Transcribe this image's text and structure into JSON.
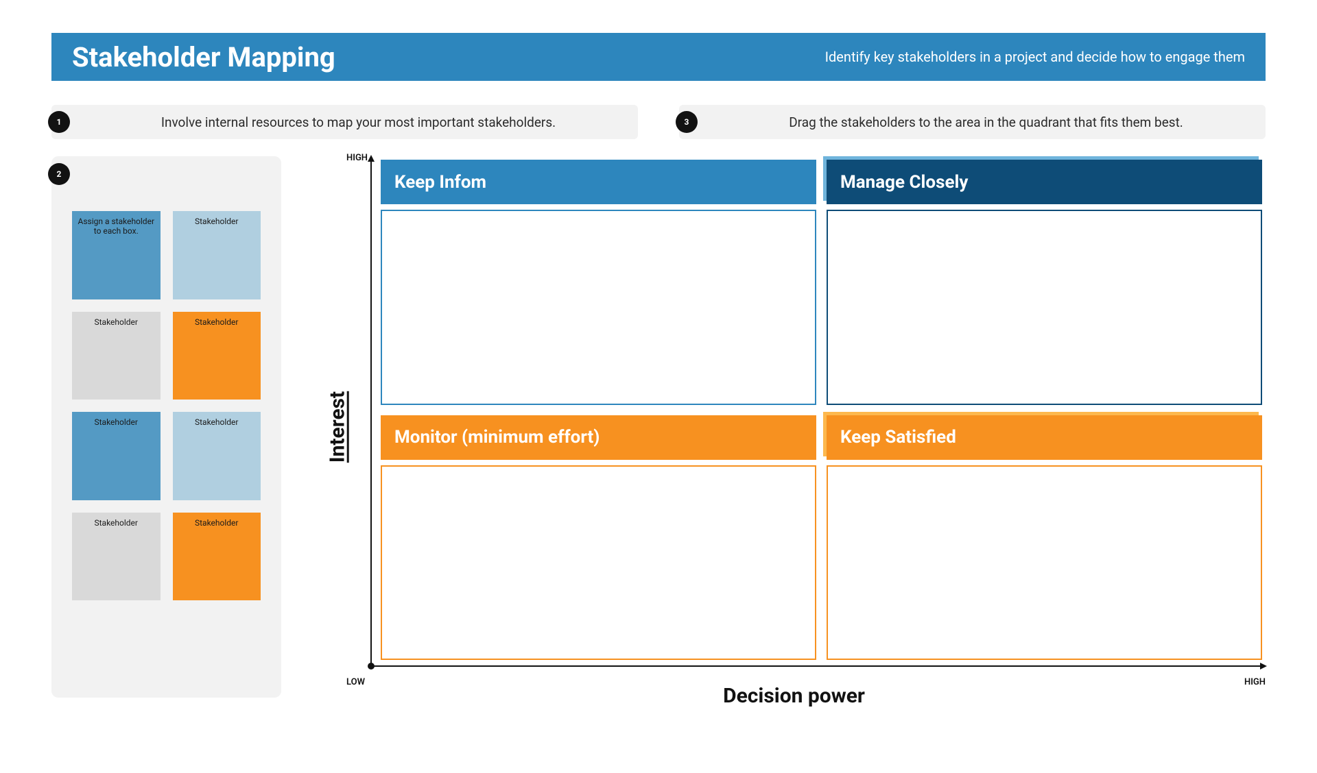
{
  "header": {
    "title": "Stakeholder Mapping",
    "subtitle": "Identify key stakeholders in a project and decide how to engage them",
    "background_color": "#2d86bd"
  },
  "instructions": [
    {
      "badge": "1",
      "text": "Involve internal resources to map your most important stakeholders."
    },
    {
      "badge": "3",
      "text": "Drag the stakeholders to the area in the quadrant that fits them best."
    }
  ],
  "sidebar": {
    "badge": "2",
    "cards": [
      {
        "label": "Assign a stakeholder to each box.",
        "bg": "#549ac4"
      },
      {
        "label": "Stakeholder",
        "bg": "#b0cfe0"
      },
      {
        "label": "Stakeholder",
        "bg": "#d9d9d9"
      },
      {
        "label": "Stakeholder",
        "bg": "#f79120"
      },
      {
        "label": "Stakeholder",
        "bg": "#549ac4"
      },
      {
        "label": "Stakeholder",
        "bg": "#b0cfe0"
      },
      {
        "label": "Stakeholder",
        "bg": "#d9d9d9"
      },
      {
        "label": "Stakeholder",
        "bg": "#f79120"
      }
    ]
  },
  "chart": {
    "y_axis_label": "Interest",
    "x_axis_label": "Decision power",
    "high_label": "HIGH",
    "low_label": "LOW",
    "quadrants": {
      "top_left": {
        "title": "Keep Infom",
        "header_bg": "#2d86bd",
        "border_color": "#2d86bd",
        "shadow": false
      },
      "top_right": {
        "title": "Manage Closely",
        "header_bg": "#0e4c77",
        "border_color": "#0e4c77",
        "shadow": "blue"
      },
      "bottom_left": {
        "title": "Monitor (minimum effort)",
        "header_bg": "#f79120",
        "border_color": "#f79120",
        "shadow": false
      },
      "bottom_right": {
        "title": "Keep Satisfied",
        "header_bg": "#f79120",
        "border_color": "#f79120",
        "shadow": "orange"
      }
    }
  }
}
